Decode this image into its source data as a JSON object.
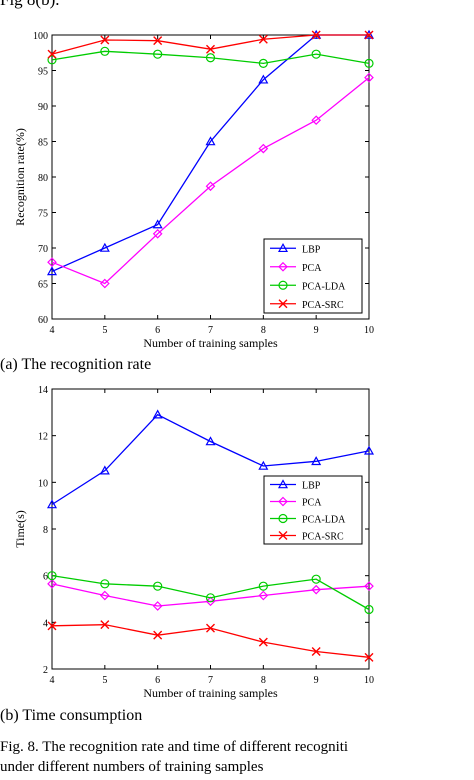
{
  "page": {
    "top_text": "Fig 8(b).",
    "caption_a": "(a)  The recognition rate",
    "caption_b": "(b)  Time consumption",
    "figure_caption_line1": "Fig. 8. The recognition rate and time of different recogniti",
    "figure_caption_line2": "under different numbers of training samples"
  },
  "chart_data": [
    {
      "type": "line",
      "title": "",
      "xlabel": "Number of training samples",
      "ylabel": "Recognition rate(%)",
      "x": [
        4,
        5,
        6,
        7,
        8,
        9,
        10
      ],
      "xlim": [
        4,
        10
      ],
      "ylim": [
        60,
        100
      ],
      "xticks": [
        "4",
        "5",
        "6",
        "7",
        "8",
        "9",
        "10"
      ],
      "yticks": [
        "60",
        "65",
        "70",
        "75",
        "80",
        "85",
        "90",
        "95",
        "100"
      ],
      "grid": false,
      "legend_position": "bottom-right",
      "series": [
        {
          "name": "LBP",
          "color": "#0000ff",
          "marker": "triangle",
          "values": [
            66.7,
            70.0,
            73.3,
            85.0,
            93.7,
            100.0,
            100.0
          ]
        },
        {
          "name": "PCA",
          "color": "#ff00ff",
          "marker": "diamond",
          "values": [
            68.0,
            65.0,
            72.0,
            78.7,
            84.0,
            88.0,
            94.0
          ]
        },
        {
          "name": "PCA-LDA",
          "color": "#00cc00",
          "marker": "circle",
          "values": [
            96.5,
            97.7,
            97.3,
            96.8,
            96.0,
            97.3,
            96.0
          ]
        },
        {
          "name": "PCA-SRC",
          "color": "#ff0000",
          "marker": "x",
          "values": [
            97.3,
            99.3,
            99.2,
            98.0,
            99.4,
            100.0,
            100.0
          ]
        }
      ]
    },
    {
      "type": "line",
      "title": "",
      "xlabel": "Number of training samples",
      "ylabel": "Time(s)",
      "x": [
        4,
        5,
        6,
        7,
        8,
        9,
        10
      ],
      "xlim": [
        4,
        10
      ],
      "ylim": [
        2,
        14
      ],
      "xticks": [
        "4",
        "5",
        "6",
        "7",
        "8",
        "9",
        "10"
      ],
      "yticks": [
        "2",
        "4",
        "6",
        "8",
        "10",
        "12",
        "14"
      ],
      "grid": false,
      "legend_position": "upper-right",
      "series": [
        {
          "name": "LBP",
          "color": "#0000ff",
          "marker": "triangle",
          "values": [
            9.05,
            10.5,
            12.9,
            11.75,
            10.7,
            10.9,
            11.35
          ]
        },
        {
          "name": "PCA",
          "color": "#ff00ff",
          "marker": "diamond",
          "values": [
            5.65,
            5.15,
            4.7,
            4.9,
            5.15,
            5.4,
            5.55
          ]
        },
        {
          "name": "PCA-LDA",
          "color": "#00cc00",
          "marker": "circle",
          "values": [
            6.0,
            5.65,
            5.55,
            5.05,
            5.55,
            5.85,
            4.55
          ]
        },
        {
          "name": "PCA-SRC",
          "color": "#ff0000",
          "marker": "x",
          "values": [
            3.85,
            3.9,
            3.45,
            3.75,
            3.15,
            2.75,
            2.5
          ]
        }
      ]
    }
  ]
}
